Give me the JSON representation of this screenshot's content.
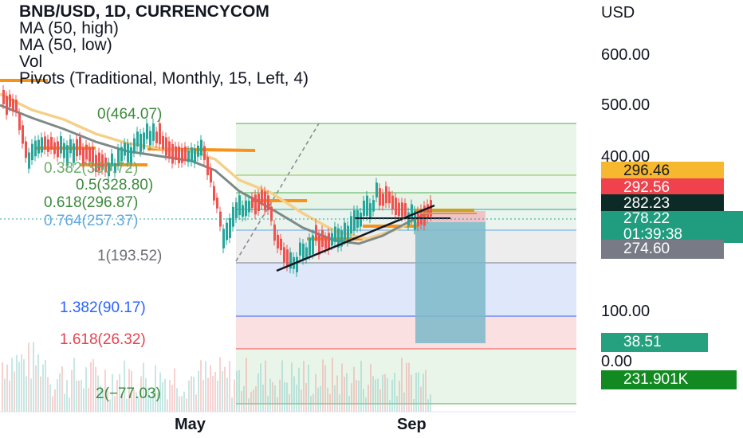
{
  "legend": {
    "title": "BNB/USD, 1D, CURRENCYCOM",
    "ma_high": "MA (50, high)",
    "ma_low": "MA (50, low)",
    "vol": "Vol",
    "pivots": "Pivots (Traditional, Monthly, 15, Left, 4)"
  },
  "price_scale": {
    "currency": "USD",
    "ticks": [
      "600.00",
      "500.00",
      "400.00",
      "100.00",
      "0.00"
    ]
  },
  "price_tags": [
    {
      "label": "296.46",
      "bg": "#f5b82e",
      "fg": "#131722"
    },
    {
      "label": "292.56",
      "bg": "#f0424c",
      "fg": "#ffffff"
    },
    {
      "label": "282.23",
      "bg": "#0d2b26",
      "fg": "#ffffff"
    },
    {
      "label": "278.22",
      "sub": "01:39:38",
      "bg": "#1f9d7e",
      "fg": "#ffffff"
    },
    {
      "label": "274.60",
      "bg": "#787b86",
      "fg": "#ffffff"
    },
    {
      "label": "38.51",
      "bg": "#26a17f",
      "fg": "#ffffff"
    },
    {
      "label": "231.901K",
      "bg": "#128a21",
      "fg": "#ffffff"
    }
  ],
  "fib_levels": [
    {
      "label": "0(464.07)",
      "color": "#3c8a3c"
    },
    {
      "label": "0.382(360.72)",
      "color": "#6fae6f"
    },
    {
      "label": "0.5(328.80)",
      "color": "#3c8a3c"
    },
    {
      "label": "0.618(296.87)",
      "color": "#3c8a3c"
    },
    {
      "label": "0.764(257.37)",
      "color": "#5fa8e0"
    },
    {
      "label": "1(193.52)",
      "color": "#6b6e76"
    },
    {
      "label": "1.382(90.17)",
      "color": "#2962ff"
    },
    {
      "label": "1.618(26.32)",
      "color": "#e5424d"
    },
    {
      "label": "2(−77.03)",
      "color": "#3c8a3c"
    }
  ],
  "time_axis": {
    "labels": [
      "May",
      "Sep"
    ]
  },
  "colors": {
    "up": "#26a69a",
    "down": "#ef5350",
    "ma_high": "#f5d08a",
    "ma_low": "#7d8a88",
    "pivot": "#f7931a",
    "trendline": "#131722"
  }
}
